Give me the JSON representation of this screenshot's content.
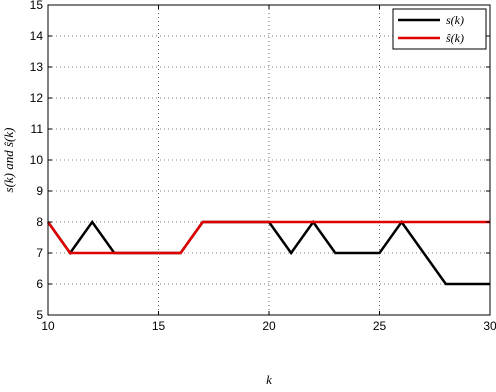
{
  "chart_data": {
    "type": "line",
    "title": "",
    "xlabel": "k",
    "ylabel": "s(k) and ŝ(k)",
    "xlim": [
      10,
      30
    ],
    "ylim": [
      5,
      15
    ],
    "xticks": [
      10,
      15,
      20,
      25,
      30
    ],
    "yticks": [
      5,
      6,
      7,
      8,
      9,
      10,
      11,
      12,
      13,
      14,
      15
    ],
    "grid": true,
    "legend_position": "top-right",
    "series": [
      {
        "name": "s(k)",
        "color": "#000000",
        "x": [
          10,
          11,
          12,
          13,
          14,
          15,
          16,
          17,
          18,
          19,
          20,
          21,
          22,
          23,
          24,
          25,
          26,
          27,
          28,
          29,
          30
        ],
        "y": [
          8,
          7,
          8,
          7,
          7,
          7,
          7,
          8,
          8,
          8,
          8,
          7,
          8,
          7,
          7,
          7,
          8,
          7,
          6,
          6,
          6
        ]
      },
      {
        "name": "ŝ(k)",
        "color": "#e00000",
        "x": [
          10,
          11,
          12,
          13,
          14,
          15,
          16,
          17,
          18,
          19,
          20,
          21,
          22,
          23,
          24,
          25,
          26,
          27,
          28,
          29,
          30
        ],
        "y": [
          8,
          7,
          7,
          7,
          7,
          7,
          7,
          8,
          8,
          8,
          8,
          8,
          8,
          8,
          8,
          8,
          8,
          8,
          8,
          8,
          8
        ]
      }
    ]
  }
}
